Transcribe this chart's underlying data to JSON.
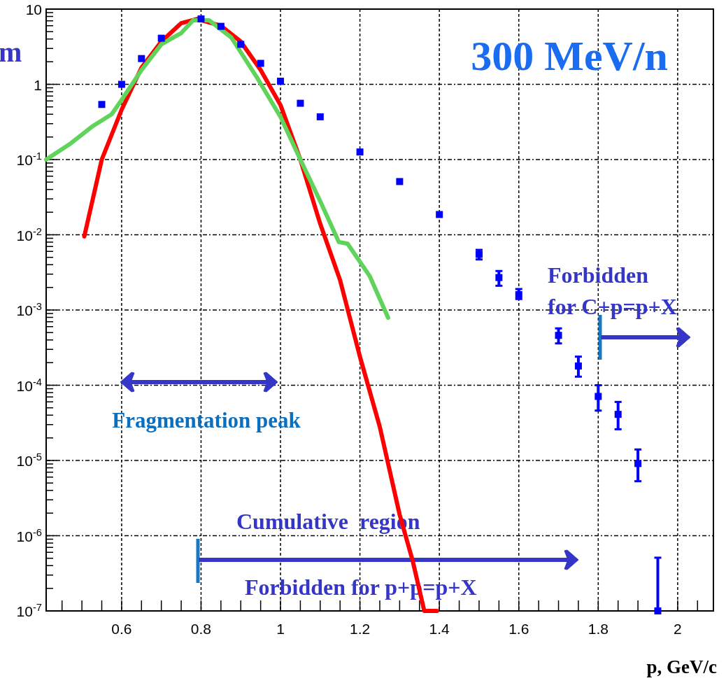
{
  "chart_data": {
    "type": "scatter",
    "xlabel": "p,  GeV/c",
    "annotations": [
      "m",
      "300 MeV/n",
      "Fragmentation peak",
      "Cumulative  region",
      "Forbidden for p+p=p+X",
      "Forbidden\nfor C+p=p+X"
    ],
    "xlim": [
      0.41,
      2.09
    ],
    "ylim": [
      1e-07,
      10
    ],
    "log": "y",
    "grid": true,
    "xticks": [
      {
        "value": 0.45,
        "label": null
      },
      {
        "value": 0.5,
        "label": null
      },
      {
        "value": 0.55,
        "label": null
      },
      {
        "value": 0.6,
        "label": "0.6"
      },
      {
        "value": 0.65,
        "label": null
      },
      {
        "value": 0.7,
        "label": null
      },
      {
        "value": 0.75,
        "label": null
      },
      {
        "value": 0.8,
        "label": "0.8"
      },
      {
        "value": 0.85,
        "label": null
      },
      {
        "value": 0.9,
        "label": null
      },
      {
        "value": 0.95,
        "label": null
      },
      1,
      {
        "value": 1.05,
        "label": null
      },
      {
        "value": 1.1,
        "label": null
      },
      {
        "value": 1.15,
        "label": null
      },
      {
        "value": 1.2,
        "label": "1.2"
      },
      {
        "value": 1.25,
        "label": null
      },
      {
        "value": 1.3,
        "label": null
      },
      {
        "value": 1.35,
        "label": null
      },
      {
        "value": 1.4,
        "label": "1.4"
      },
      {
        "value": 1.45,
        "label": null
      },
      {
        "value": 1.5,
        "label": null
      },
      {
        "value": 1.55,
        "label": null
      },
      {
        "value": 1.6,
        "label": "1.6"
      },
      {
        "value": 1.65,
        "label": null
      },
      {
        "value": 1.7,
        "label": null
      },
      {
        "value": 1.75,
        "label": null
      },
      {
        "value": 1.8,
        "label": "1.8"
      },
      {
        "value": 1.85,
        "label": null
      },
      {
        "value": 1.9,
        "label": null
      },
      {
        "value": 1.95,
        "label": null
      },
      2,
      {
        "value": 2.05,
        "label": null
      }
    ],
    "yticks": [
      {
        "value": 1e-07,
        "label": "10$^{-7}$"
      },
      {
        "value": 2e-07,
        "label": null
      },
      {
        "value": 3e-07,
        "label": null
      },
      {
        "value": 4e-07,
        "label": null
      },
      {
        "value": 5e-07,
        "label": null
      },
      {
        "value": 6e-07,
        "label": null
      },
      {
        "value": 7e-07,
        "label": null
      },
      {
        "value": 8e-07,
        "label": null
      },
      {
        "value": 9e-07,
        "label": null
      },
      {
        "value": 1e-06,
        "label": "10$^{-6}$"
      },
      {
        "value": 2e-06,
        "label": null
      },
      {
        "value": 3e-06,
        "label": null
      },
      {
        "value": 4e-06,
        "label": null
      },
      {
        "value": 5e-06,
        "label": null
      },
      {
        "value": 6e-06,
        "label": null
      },
      {
        "value": 7e-06,
        "label": null
      },
      {
        "value": 8e-06,
        "label": null
      },
      {
        "value": 9e-06,
        "label": null
      },
      {
        "value": 1e-05,
        "label": "10$^{-5}$"
      },
      {
        "value": 2e-05,
        "label": null
      },
      {
        "value": 3e-05,
        "label": null
      },
      {
        "value": 4e-05,
        "label": null
      },
      {
        "value": 5e-05,
        "label": null
      },
      {
        "value": 6e-05,
        "label": null
      },
      {
        "value": 7e-05,
        "label": null
      },
      {
        "value": 8e-05,
        "label": null
      },
      {
        "value": 9e-05,
        "label": null
      },
      {
        "value": 0.0001,
        "label": "10$^{-4}$"
      },
      {
        "value": 0.0002,
        "label": null
      },
      {
        "value": 0.0003,
        "label": null
      },
      {
        "value": 0.0004,
        "label": null
      },
      {
        "value": 0.0005,
        "label": null
      },
      {
        "value": 0.0006,
        "label": null
      },
      {
        "value": 0.0007,
        "label": null
      },
      {
        "value": 0.0008,
        "label": null
      },
      {
        "value": 0.0009,
        "label": null
      },
      {
        "value": 0.001,
        "label": "10$^{-3}$"
      },
      {
        "value": 0.002,
        "label": null
      },
      {
        "value": 0.003,
        "label": null
      },
      {
        "value": 0.004,
        "label": null
      },
      {
        "value": 0.005,
        "label": null
      },
      {
        "value": 0.006,
        "label": null
      },
      {
        "value": 0.007,
        "label": null
      },
      {
        "value": 0.008,
        "label": null
      },
      {
        "value": 0.009,
        "label": null
      },
      {
        "value": 0.01,
        "label": "10$^{-2}$"
      },
      {
        "value": 0.02,
        "label": null
      },
      {
        "value": 0.03,
        "label": null
      },
      {
        "value": 0.04,
        "label": null
      },
      {
        "value": 0.05,
        "label": null
      },
      {
        "value": 0.06,
        "label": null
      },
      {
        "value": 0.07,
        "label": null
      },
      {
        "value": 0.08,
        "label": null
      },
      {
        "value": 0.09,
        "label": null
      },
      {
        "value": 0.1,
        "label": "10$^{-1}$"
      },
      {
        "value": 0.2,
        "label": null
      },
      {
        "value": 0.3,
        "label": null
      },
      {
        "value": 0.4,
        "label": null
      },
      {
        "value": 0.5,
        "label": null
      },
      {
        "value": 0.6,
        "label": null
      },
      {
        "value": 0.7,
        "label": null
      },
      {
        "value": 0.8,
        "label": null
      },
      {
        "value": 0.9,
        "label": null
      },
      1,
      {
        "value": 2,
        "label": null
      },
      {
        "value": 3,
        "label": null
      },
      {
        "value": 4,
        "label": null
      },
      {
        "value": 5,
        "label": null
      },
      {
        "value": 6,
        "label": null
      },
      {
        "value": 7,
        "label": null
      },
      {
        "value": 8,
        "label": null
      },
      {
        "value": 9,
        "label": null
      },
      10
    ],
    "series": [
      {
        "type": "line",
        "color": "#ff0000",
        "x": [
          0.506,
          0.55,
          0.6,
          0.65,
          0.7,
          0.75,
          0.79,
          0.85,
          0.9,
          0.95,
          1.0,
          1.05,
          1.1,
          1.15,
          1.2,
          1.25,
          1.3,
          1.333,
          1.362,
          1.394
        ],
        "values": [
          0.0095,
          0.1,
          0.46,
          1.66,
          3.7,
          6.5,
          7.4,
          6.0,
          3.7,
          1.55,
          0.53,
          0.1,
          0.014,
          0.0025,
          0.00024,
          2.8e-05,
          1.9e-06,
          4.6e-07,
          1e-07,
          1e-07
        ]
      },
      {
        "type": "line",
        "color": "#5fd35a",
        "x": [
          0.41,
          0.469,
          0.528,
          0.575,
          0.6,
          0.65,
          0.7,
          0.75,
          0.78,
          0.82,
          0.876,
          0.94,
          1.0,
          1.05,
          1.1,
          1.147,
          1.169,
          1.225,
          1.271
        ],
        "values": [
          0.1,
          0.16,
          0.28,
          0.4,
          0.62,
          1.55,
          3.4,
          4.8,
          7.1,
          7.1,
          4.2,
          1.25,
          0.37,
          0.1,
          0.028,
          0.008,
          0.0076,
          0.0028,
          0.00079
        ]
      },
      {
        "marker": "square",
        "color": "#0000ff",
        "x": [
          0.55,
          0.6,
          0.65,
          0.7,
          0.8,
          0.85,
          0.9,
          0.95,
          1.0,
          1.05,
          1.1,
          1.2,
          1.3,
          1.4,
          1.5,
          1.55,
          1.6,
          1.7,
          1.75,
          1.8,
          1.85,
          1.9,
          1.95
        ],
        "values": [
          0.54,
          1.0,
          2.2,
          4.1,
          7.4,
          5.9,
          3.4,
          1.9,
          1.1,
          0.56,
          0.37,
          0.126,
          0.051,
          0.0186,
          0.0055,
          0.0027,
          0.0016,
          0.00046,
          0.00018,
          7.1e-05,
          4.1e-05,
          9.1e-06,
          1e-07
        ],
        "errors": [
          null,
          null,
          null,
          null,
          null,
          null,
          null,
          null,
          null,
          null,
          null,
          null,
          null,
          null,
          [
            0.0047,
            0.0063
          ],
          [
            0.0021,
            0.0033
          ],
          [
            0.0014,
            0.0019
          ],
          [
            0.00036,
            0.00057
          ],
          [
            0.00013,
            0.00024
          ],
          [
            4.6e-05,
            0.0001
          ],
          [
            2.6e-05,
            6e-05
          ],
          [
            5.3e-06,
            1.4e-05
          ],
          [
            1e-07,
            5.1e-07
          ]
        ]
      }
    ]
  }
}
